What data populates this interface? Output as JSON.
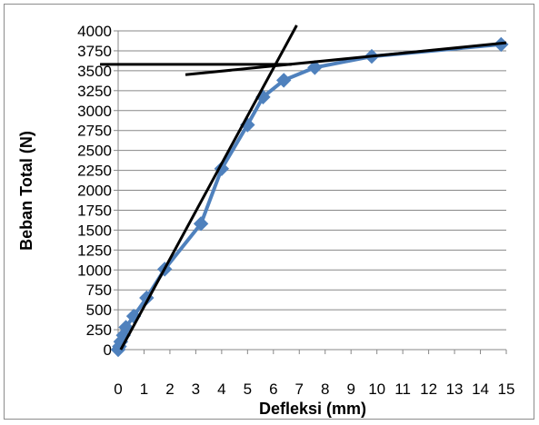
{
  "chart_data": {
    "type": "scatter",
    "title": "",
    "xlabel": "Defleksi (mm)",
    "ylabel": "Beban Total (N)",
    "xlim": [
      0,
      15
    ],
    "ylim": [
      0,
      4000
    ],
    "x_ticks": [
      0,
      1,
      2,
      3,
      4,
      5,
      6,
      7,
      8,
      9,
      10,
      11,
      12,
      13,
      14,
      15
    ],
    "y_ticks": [
      0,
      250,
      500,
      750,
      1000,
      1250,
      1500,
      1750,
      2000,
      2250,
      2500,
      2750,
      3000,
      3250,
      3500,
      3750,
      4000
    ],
    "grid": {
      "horizontal": true,
      "vertical": false
    },
    "legend": "none",
    "series": [
      {
        "color": "#4f81bd",
        "marker": "diamond",
        "x": [
          0,
          0.05,
          0.1,
          0.2,
          0.3,
          0.6,
          1.1,
          1.8,
          3.2,
          4.0,
          5.0,
          5.6,
          6.4,
          7.6,
          9.8,
          14.8
        ],
        "y": [
          0,
          40,
          100,
          180,
          280,
          420,
          650,
          1010,
          1580,
          2270,
          2820,
          3170,
          3380,
          3540,
          3680,
          3830
        ]
      }
    ],
    "reference_lines": [
      {
        "color": "#000000",
        "x": [
          0.1,
          6.9
        ],
        "y": [
          0,
          4070
        ]
      },
      {
        "color": "#000000",
        "x": [
          2.6,
          15.0
        ],
        "y": [
          3450,
          3850
        ]
      },
      {
        "color": "#000000",
        "x": [
          -0.7,
          6.7
        ],
        "y": [
          3580,
          3580
        ]
      }
    ]
  }
}
